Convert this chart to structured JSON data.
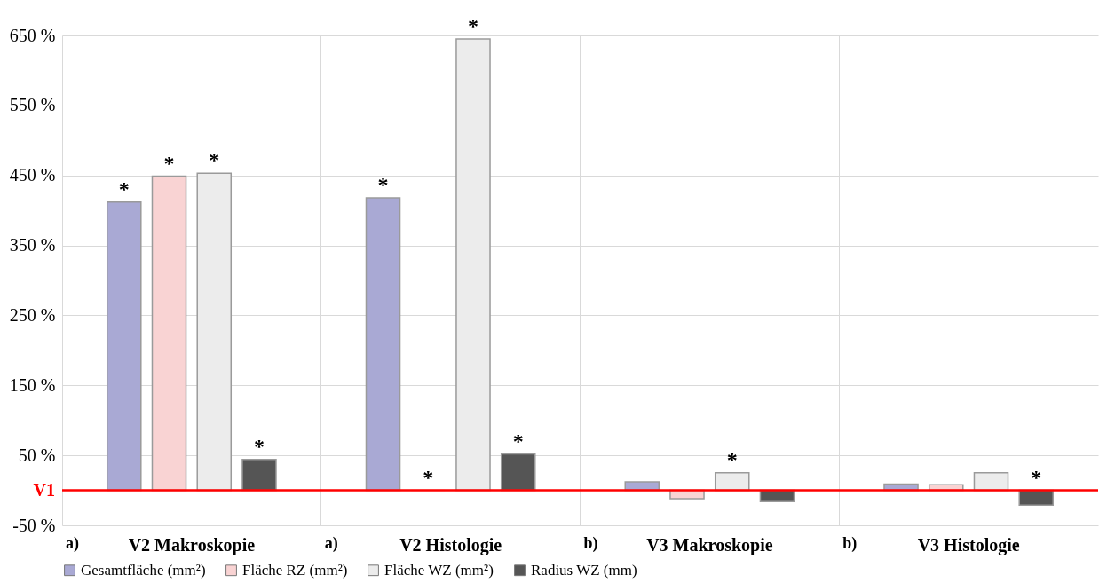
{
  "chart_data": {
    "type": "bar",
    "categories": [
      "V2 Makroskopie",
      "V2 Histologie",
      "V3 Makroskopie",
      "V3 Histologie"
    ],
    "series": [
      {
        "name": "Gesamtfläche (mm²)",
        "color": "#a9a9d4",
        "values": [
          412,
          418,
          12,
          9
        ],
        "value_labels": [
          "*",
          "*",
          null,
          null
        ]
      },
      {
        "name": "Fläche RZ (mm²)",
        "color": "#f9d3d3",
        "values": [
          449,
          0,
          -12,
          8
        ],
        "value_labels": [
          "*",
          "*",
          null,
          null
        ]
      },
      {
        "name": "Fläche WZ (mm²)",
        "color": "#ececec",
        "values": [
          453,
          645,
          25,
          25
        ],
        "value_labels": [
          "*",
          "*",
          "*",
          null
        ]
      },
      {
        "name": "Radius WZ (mm)",
        "color": "#555555",
        "values": [
          44,
          52,
          -16,
          -21
        ],
        "value_labels": [
          "*",
          "*",
          null,
          "*"
        ]
      }
    ],
    "ylim": [
      -50,
      650
    ],
    "yticks": [
      {
        "value": -50,
        "label": "-50 %"
      },
      {
        "value": 50,
        "label": "50 %"
      },
      {
        "value": 150,
        "label": "150 %"
      },
      {
        "value": 250,
        "label": "250 %"
      },
      {
        "value": 350,
        "label": "350 %"
      },
      {
        "value": 450,
        "label": "450 %"
      },
      {
        "value": 550,
        "label": "550 %"
      },
      {
        "value": 650,
        "label": "650 %"
      }
    ],
    "ref_lines": [
      {
        "axis": "y",
        "value": 0,
        "label": "V1",
        "color": "#ff0000"
      }
    ],
    "annotations": [
      "a)",
      "a)",
      "b)",
      "b)"
    ],
    "grid": true,
    "legend": "bottom"
  }
}
